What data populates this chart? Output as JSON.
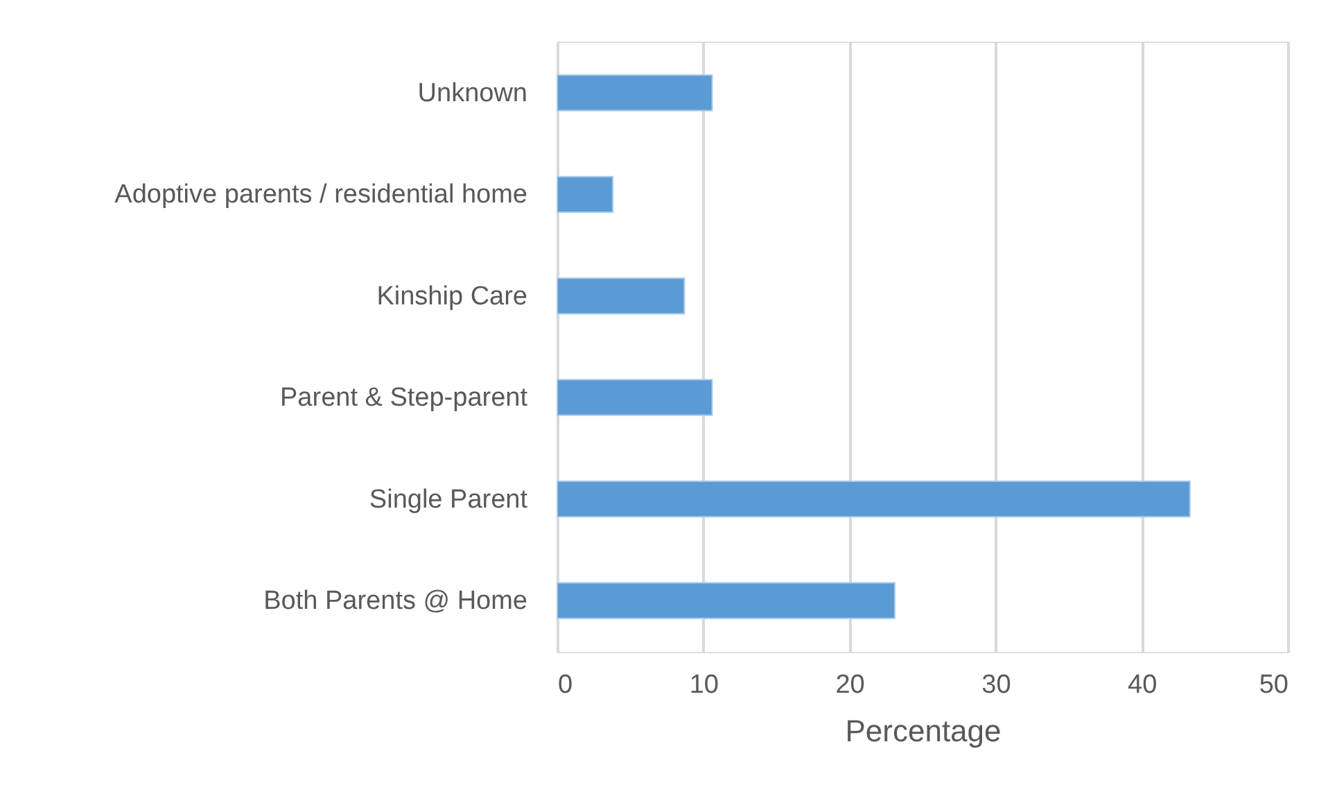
{
  "chart_data": {
    "type": "bar",
    "orientation": "horizontal",
    "xlabel": "Percentage",
    "categories": [
      "Unknown",
      "Adoptive parents / residential home",
      "Kinship Care",
      "Parent & Step-parent",
      "Single Parent",
      "Both Parents @ Home"
    ],
    "values": [
      10.6,
      3.8,
      8.7,
      10.6,
      43.3,
      23.1
    ],
    "color": "#5b9bd5",
    "xlim": [
      0,
      50
    ],
    "xticks": [
      0,
      10,
      20,
      30,
      40,
      50
    ],
    "grid": "x"
  }
}
